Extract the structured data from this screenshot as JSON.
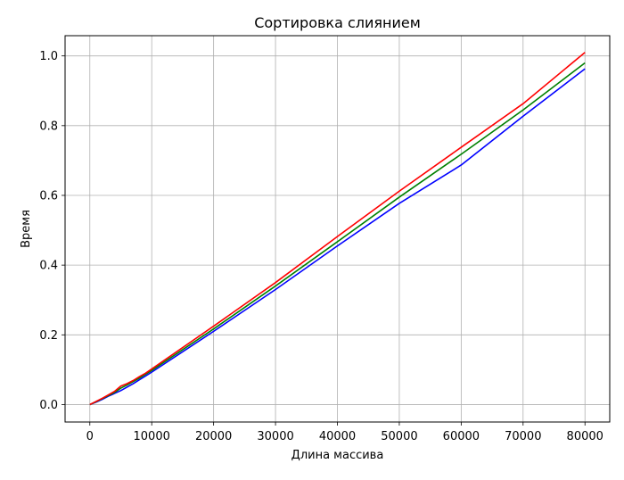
{
  "chart_data": {
    "type": "line",
    "title": "Сортировка слиянием",
    "xlabel": "Длина массива",
    "ylabel": "Время",
    "xlim": [
      -4000,
      84000
    ],
    "ylim": [
      -0.05,
      1.058
    ],
    "xticks": [
      0,
      10000,
      20000,
      30000,
      40000,
      50000,
      60000,
      70000,
      80000
    ],
    "yticks": [
      0.0,
      0.2,
      0.4,
      0.6,
      0.8,
      1.0
    ],
    "xtick_labels": [
      "0",
      "10000",
      "20000",
      "30000",
      "40000",
      "50000",
      "60000",
      "70000",
      "80000"
    ],
    "ytick_labels": [
      "0.0",
      "0.2",
      "0.4",
      "0.6",
      "0.8",
      "1.0"
    ],
    "grid": true,
    "legend": null,
    "series": [
      {
        "color": "#0000ff",
        "x": [
          0,
          1000,
          2000,
          3000,
          4000,
          5000,
          6000,
          7000,
          8000,
          9000,
          10000,
          20000,
          30000,
          40000,
          50000,
          60000,
          70000,
          80000
        ],
        "y": [
          0.0,
          0.007,
          0.015,
          0.024,
          0.032,
          0.04,
          0.05,
          0.06,
          0.071,
          0.082,
          0.093,
          0.21,
          0.33,
          0.455,
          0.577,
          0.687,
          0.827,
          0.963
        ]
      },
      {
        "color": "#008000",
        "x": [
          0,
          1000,
          2000,
          3000,
          4000,
          5000,
          6000,
          7000,
          8000,
          9000,
          10000,
          20000,
          30000,
          40000,
          50000,
          60000,
          70000,
          80000
        ],
        "y": [
          0.0,
          0.008,
          0.017,
          0.026,
          0.035,
          0.047,
          0.056,
          0.066,
          0.076,
          0.087,
          0.098,
          0.217,
          0.34,
          0.467,
          0.595,
          0.718,
          0.845,
          0.98
        ]
      },
      {
        "color": "#ff0000",
        "x": [
          0,
          1000,
          2000,
          3000,
          4000,
          5000,
          6000,
          7000,
          8000,
          9000,
          10000,
          20000,
          30000,
          40000,
          50000,
          60000,
          70000,
          80000
        ],
        "y": [
          0.0,
          0.009,
          0.018,
          0.028,
          0.038,
          0.053,
          0.06,
          0.069,
          0.08,
          0.09,
          0.102,
          0.225,
          0.35,
          0.482,
          0.612,
          0.738,
          0.863,
          1.01
        ]
      }
    ]
  }
}
